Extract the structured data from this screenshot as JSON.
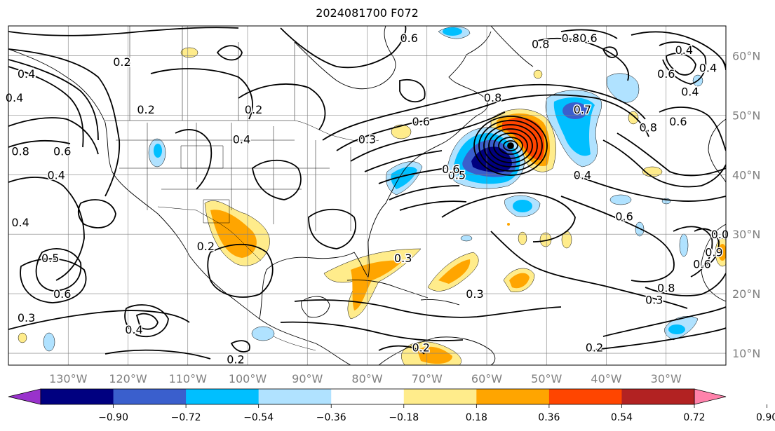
{
  "title": "2024081700 F072",
  "map": {
    "lon_range": [
      -140,
      -20
    ],
    "lat_range": [
      8,
      65
    ],
    "lon_ticks": [
      "130°W",
      "120°W",
      "110°W",
      "100°W",
      "90°W",
      "80°W",
      "70°W",
      "60°W",
      "50°W",
      "40°W",
      "30°W"
    ],
    "lat_ticks": [
      "60°N",
      "50°N",
      "40°N",
      "30°N",
      "20°N",
      "10°N"
    ],
    "gridlines": true,
    "contour_labels": [
      {
        "text": "0.2",
        "lon": -121,
        "lat": 59
      },
      {
        "text": "0.6",
        "lon": -73,
        "lat": 63
      },
      {
        "text": "0.8",
        "lon": -51,
        "lat": 62
      },
      {
        "text": "0.8",
        "lon": -46,
        "lat": 63
      },
      {
        "text": "0.6",
        "lon": -43,
        "lat": 63
      },
      {
        "text": "0.4",
        "lon": -27,
        "lat": 61
      },
      {
        "text": "0.6",
        "lon": -30,
        "lat": 57
      },
      {
        "text": "0.4",
        "lon": -23,
        "lat": 58
      },
      {
        "text": "0.4",
        "lon": -26,
        "lat": 54
      },
      {
        "text": "0.4",
        "lon": -137,
        "lat": 57
      },
      {
        "text": "0.4",
        "lon": -139,
        "lat": 53
      },
      {
        "text": "0.2",
        "lon": -117,
        "lat": 51
      },
      {
        "text": "0.2",
        "lon": -99,
        "lat": 51
      },
      {
        "text": "0.4",
        "lon": -101,
        "lat": 46
      },
      {
        "text": "0.3",
        "lon": -80,
        "lat": 46
      },
      {
        "text": "0.6",
        "lon": -71,
        "lat": 49
      },
      {
        "text": "0.8",
        "lon": -59,
        "lat": 53
      },
      {
        "text": "0.7",
        "lon": -44,
        "lat": 51
      },
      {
        "text": "0.8",
        "lon": -33,
        "lat": 48
      },
      {
        "text": "0.4",
        "lon": -44,
        "lat": 40
      },
      {
        "text": "0.5",
        "lon": -65,
        "lat": 40
      },
      {
        "text": "0.6",
        "lon": -66,
        "lat": 41
      },
      {
        "text": "0.8",
        "lon": -138,
        "lat": 44
      },
      {
        "text": "0.6",
        "lon": -131,
        "lat": 44
      },
      {
        "text": "0.4",
        "lon": -132,
        "lat": 40
      },
      {
        "text": "0.4",
        "lon": -138,
        "lat": 32
      },
      {
        "text": "0.5",
        "lon": -133,
        "lat": 26
      },
      {
        "text": "0.6",
        "lon": -131,
        "lat": 20
      },
      {
        "text": "0.3",
        "lon": -137,
        "lat": 16
      },
      {
        "text": "0.4",
        "lon": -119,
        "lat": 14
      },
      {
        "text": "0.2",
        "lon": -102,
        "lat": 9
      },
      {
        "text": "0.2",
        "lon": -107,
        "lat": 28
      },
      {
        "text": "0.3",
        "lon": -74,
        "lat": 26
      },
      {
        "text": "0.3",
        "lon": -62,
        "lat": 20
      },
      {
        "text": "0.6",
        "lon": -28,
        "lat": 49
      },
      {
        "text": "0.6",
        "lon": -37,
        "lat": 33
      },
      {
        "text": "0.3",
        "lon": -32,
        "lat": 19
      },
      {
        "text": "0.8",
        "lon": -30,
        "lat": 21
      },
      {
        "text": "0.2",
        "lon": -42,
        "lat": 11
      },
      {
        "text": "0.0",
        "lon": -21,
        "lat": 30
      },
      {
        "text": "0.6",
        "lon": -24,
        "lat": 25
      },
      {
        "text": "0.9",
        "lon": -22,
        "lat": 27
      },
      {
        "text": "0.2",
        "lon": -71,
        "lat": 11
      }
    ]
  },
  "colorbar": {
    "labels": [
      "−0.90",
      "−0.72",
      "−0.54",
      "−0.36",
      "−0.18",
      "0.18",
      "0.36",
      "0.54",
      "0.72",
      "0.90"
    ],
    "colors": [
      "#9932cc",
      "#000080",
      "#3a5fcd",
      "#00bfff",
      "#b0e2ff",
      "#ffffff",
      "#ffec8b",
      "#ffa500",
      "#ff4500",
      "#b22222",
      "#ff82ab"
    ],
    "extend": "both"
  }
}
